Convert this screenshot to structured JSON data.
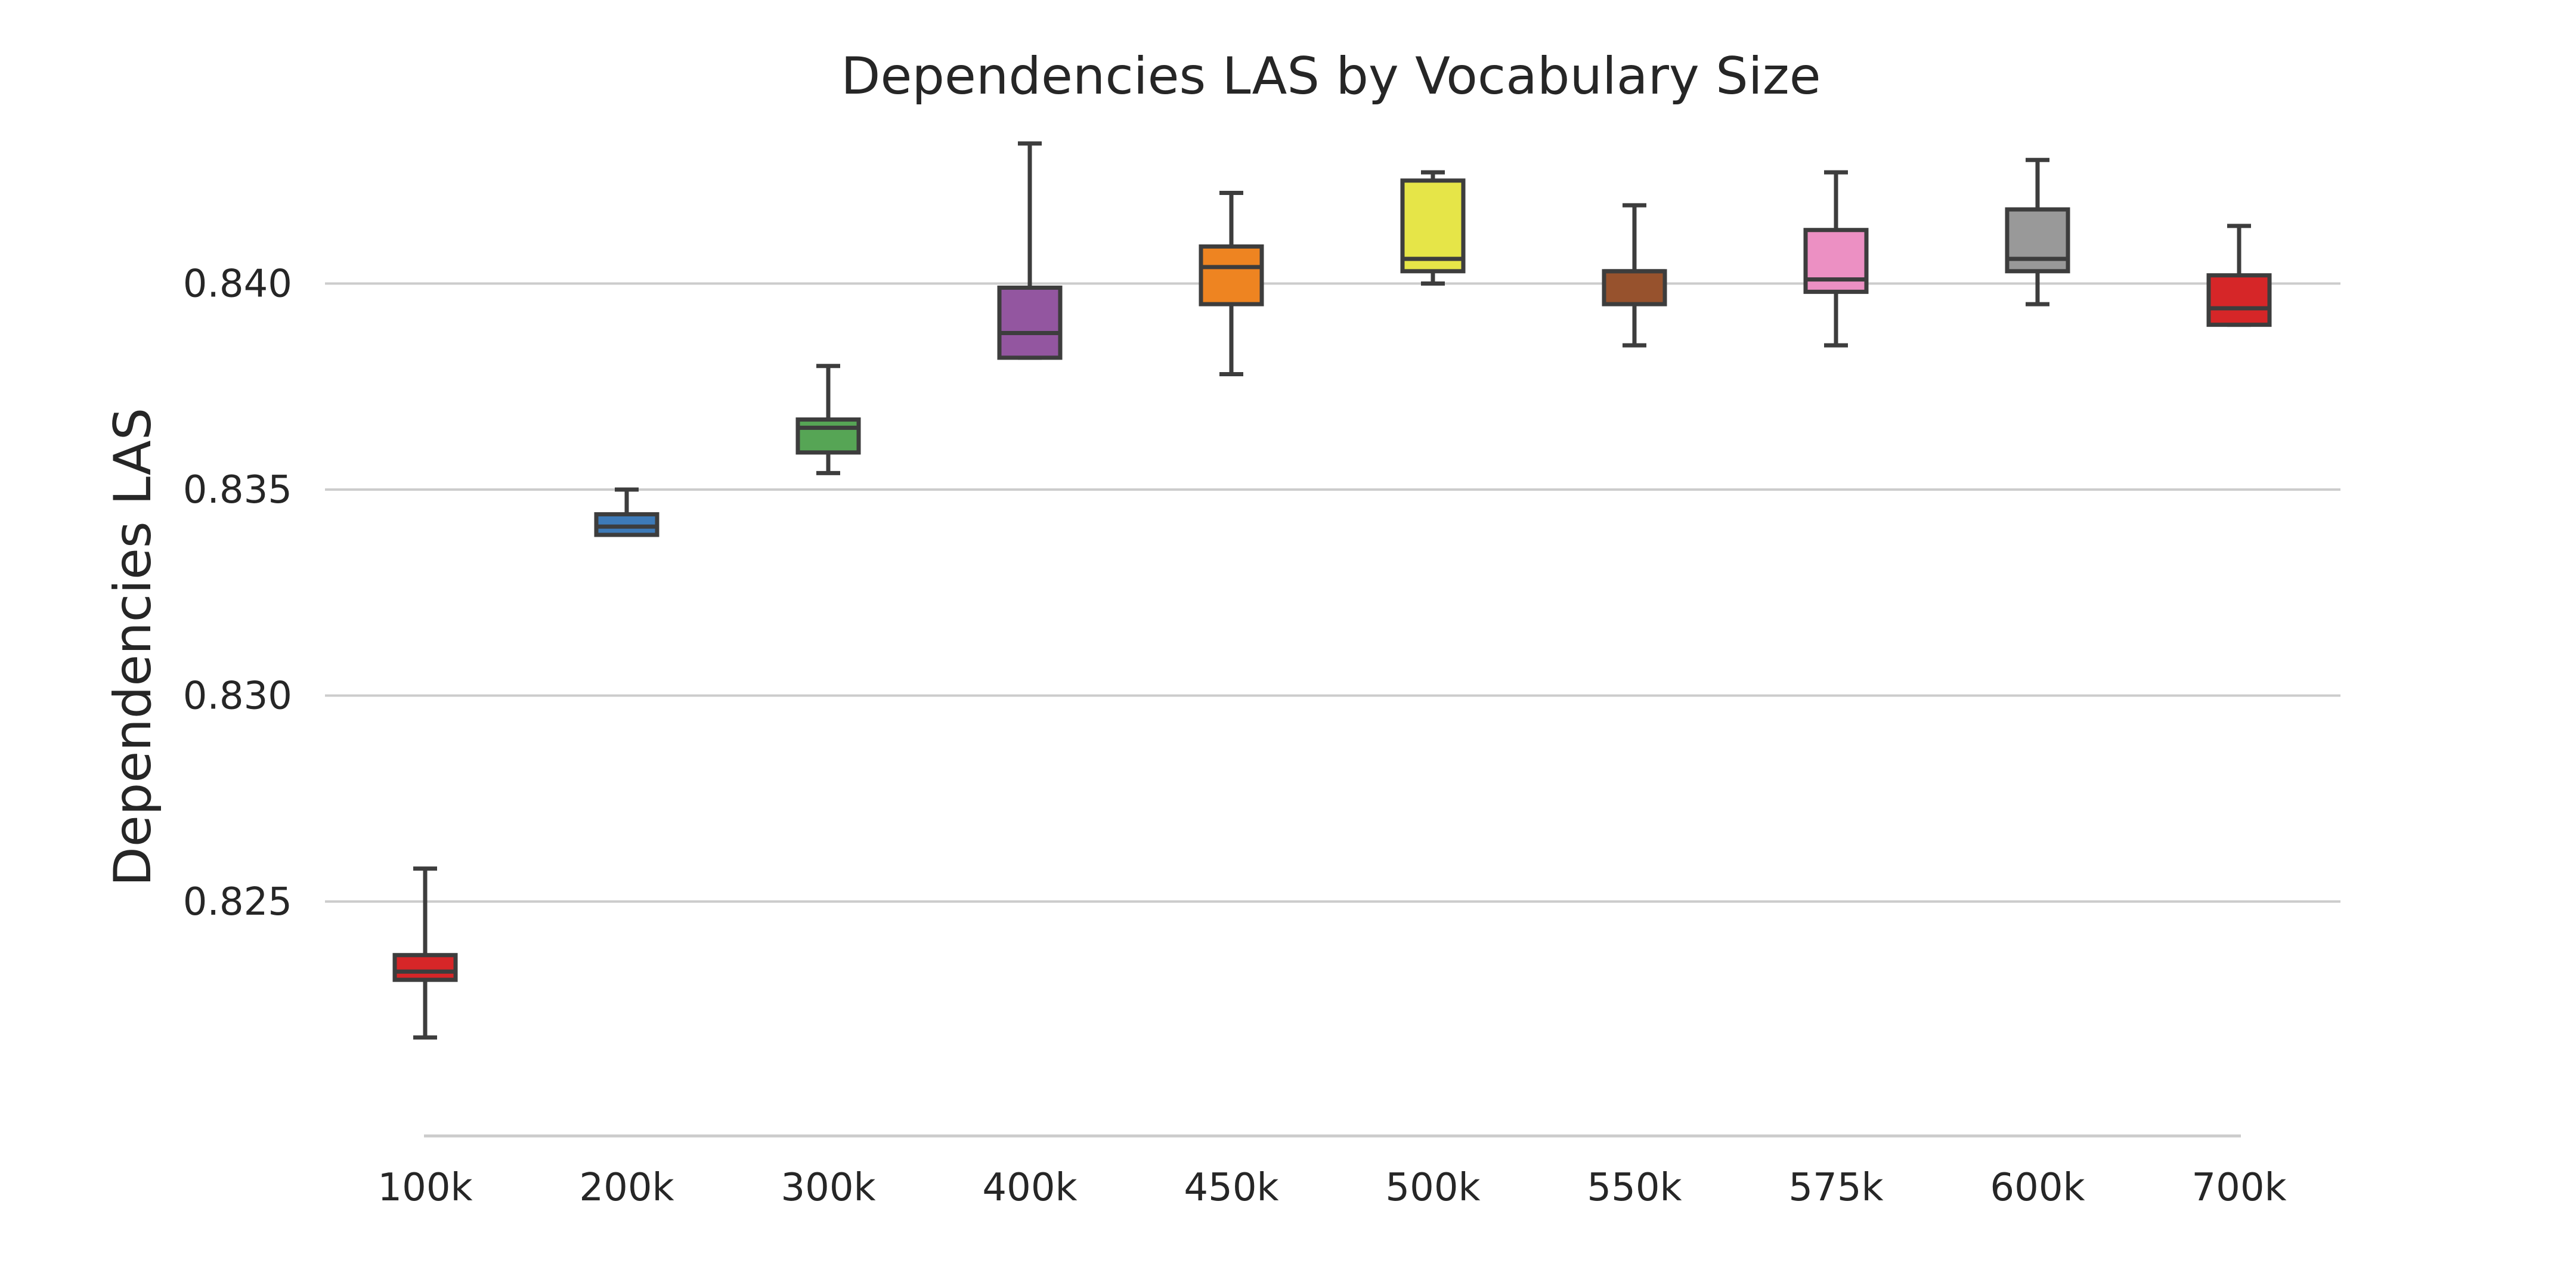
{
  "chart_data": {
    "type": "box",
    "title": "Dependencies LAS by Vocabulary Size",
    "xlabel": "",
    "ylabel": "Dependencies LAS",
    "ylim": [
      0.8196,
      0.8438
    ],
    "yticks": [
      0.825,
      0.83,
      0.835,
      0.84
    ],
    "ytick_labels": [
      "0.825",
      "0.830",
      "0.835",
      "0.840"
    ],
    "grid": "horizontal",
    "categories": [
      "100k",
      "200k",
      "300k",
      "400k",
      "450k",
      "500k",
      "550k",
      "575k",
      "600k",
      "700k"
    ],
    "colors": [
      "#d62628",
      "#3d7ab8",
      "#56a555",
      "#9356a0",
      "#ee8421",
      "#e6e548",
      "#97522d",
      "#ec90c3",
      "#999999",
      "#d62628"
    ],
    "boxes": [
      {
        "category": "100k",
        "whisker_low": 0.8217,
        "q1": 0.8231,
        "median": 0.8233,
        "q3": 0.8237,
        "whisker_high": 0.8258
      },
      {
        "category": "200k",
        "whisker_low": 0.8339,
        "q1": 0.8339,
        "median": 0.8341,
        "q3": 0.8344,
        "whisker_high": 0.835
      },
      {
        "category": "300k",
        "whisker_low": 0.8354,
        "q1": 0.8359,
        "median": 0.8365,
        "q3": 0.8367,
        "whisker_high": 0.838
      },
      {
        "category": "400k",
        "whisker_low": 0.8382,
        "q1": 0.8382,
        "median": 0.8388,
        "q3": 0.8399,
        "whisker_high": 0.8434
      },
      {
        "category": "450k",
        "whisker_low": 0.8378,
        "q1": 0.8395,
        "median": 0.8404,
        "q3": 0.8409,
        "whisker_high": 0.8422
      },
      {
        "category": "500k",
        "whisker_low": 0.84,
        "q1": 0.8403,
        "median": 0.8406,
        "q3": 0.8425,
        "whisker_high": 0.8427
      },
      {
        "category": "550k",
        "whisker_low": 0.8385,
        "q1": 0.8395,
        "median": 0.8403,
        "q3": 0.8403,
        "whisker_high": 0.8419
      },
      {
        "category": "575k",
        "whisker_low": 0.8385,
        "q1": 0.8398,
        "median": 0.8401,
        "q3": 0.8413,
        "whisker_high": 0.8427
      },
      {
        "category": "600k",
        "whisker_low": 0.8395,
        "q1": 0.8403,
        "median": 0.8406,
        "q3": 0.8418,
        "whisker_high": 0.843
      },
      {
        "category": "700k",
        "whisker_low": 0.839,
        "q1": 0.839,
        "median": 0.8394,
        "q3": 0.8402,
        "whisker_high": 0.8414
      }
    ]
  }
}
